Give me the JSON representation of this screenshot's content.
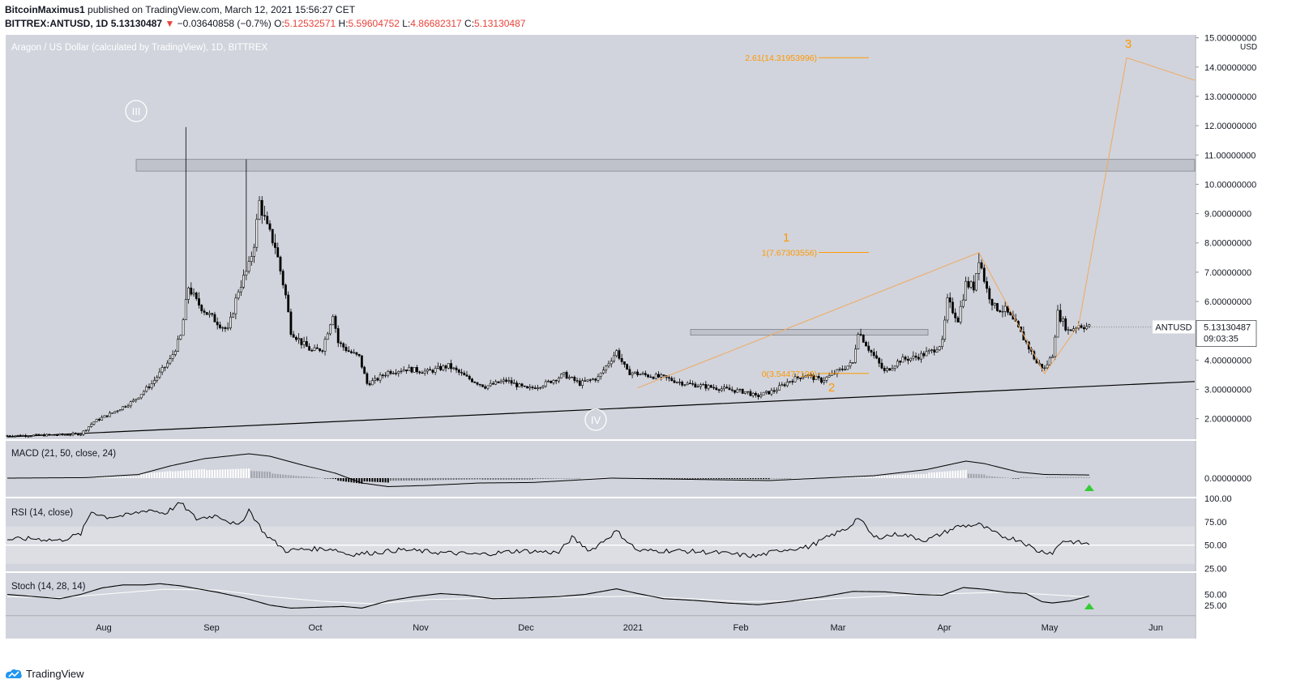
{
  "header": {
    "author": "BitcoinMaximus1",
    "published": "published on TradingView.com, March 12, 2021 15:56:27 CET",
    "symbol": "BITTREX:ANTUSD, 1D",
    "last": "5.13130487",
    "arrow": "▼",
    "change": "−0.03640858 (−0.7%)",
    "o_label": "O:",
    "o": "5.12532571",
    "h_label": "H:",
    "h": "5.59604752",
    "l_label": "L:",
    "l": "4.86682317",
    "c_label": "C:",
    "c": "5.13130487"
  },
  "branding": "TradingView",
  "colors": {
    "pane": "#d1d4dc",
    "band": "#dcdee4",
    "candle": "#000000",
    "orange": "#ff9800",
    "green": "#33cc33"
  },
  "chart_data": [
    {
      "type": "candlestick",
      "title": "Aragon / US Dollar (calculated by TradingView), 1D, BITTREX",
      "currency": "USD",
      "x_labels": [
        "Aug",
        "Sep",
        "Oct",
        "Nov",
        "Dec",
        "2021",
        "Feb",
        "Mar",
        "Apr",
        "May",
        "Jun"
      ],
      "y_ticks": [
        "2.00000000",
        "3.00000000",
        "4.00000000",
        "5.00000000",
        "6.00000000",
        "7.00000000",
        "8.00000000",
        "9.00000000",
        "10.00000000",
        "11.00000000",
        "12.00000000",
        "13.00000000",
        "14.00000000",
        "15.00000000"
      ],
      "ylim": [
        1.3,
        15.1
      ],
      "price_label": {
        "symbol": "ANTUSD",
        "value": "5.13130487",
        "countdown": "09:03:35"
      },
      "price_anchors_x_y": [
        [
          0,
          1.42
        ],
        [
          10,
          1.43
        ],
        [
          20,
          1.45
        ],
        [
          28,
          1.48
        ],
        [
          33,
          1.9
        ],
        [
          40,
          2.2
        ],
        [
          48,
          2.6
        ],
        [
          55,
          3.2
        ],
        [
          62,
          4.0
        ],
        [
          66,
          4.8
        ],
        [
          69,
          6.5
        ],
        [
          72,
          6.0
        ],
        [
          76,
          5.6
        ],
        [
          80,
          5.3
        ],
        [
          84,
          5.0
        ],
        [
          88,
          6.4
        ],
        [
          92,
          7.2
        ],
        [
          94,
          8.0
        ],
        [
          96,
          9.4
        ],
        [
          99,
          8.5
        ],
        [
          102,
          7.9
        ],
        [
          106,
          6.2
        ],
        [
          108,
          5.0
        ],
        [
          112,
          4.6
        ],
        [
          116,
          4.3
        ],
        [
          120,
          4.4
        ],
        [
          124,
          5.6
        ],
        [
          126,
          4.6
        ],
        [
          130,
          4.3
        ],
        [
          134,
          4.1
        ],
        [
          137,
          3.2
        ],
        [
          140,
          3.3
        ],
        [
          145,
          3.6
        ],
        [
          152,
          3.7
        ],
        [
          160,
          3.6
        ],
        [
          168,
          3.8
        ],
        [
          175,
          3.4
        ],
        [
          182,
          3.1
        ],
        [
          190,
          3.3
        ],
        [
          198,
          3.0
        ],
        [
          205,
          3.2
        ],
        [
          212,
          3.5
        ],
        [
          218,
          3.2
        ],
        [
          225,
          3.4
        ],
        [
          232,
          4.3
        ],
        [
          236,
          3.6
        ],
        [
          242,
          3.5
        ],
        [
          250,
          3.4
        ],
        [
          258,
          3.2
        ],
        [
          266,
          3.1
        ],
        [
          274,
          3.0
        ],
        [
          282,
          2.9
        ],
        [
          285,
          2.75
        ],
        [
          288,
          2.85
        ],
        [
          292,
          2.95
        ],
        [
          298,
          3.3
        ],
        [
          304,
          3.5
        ],
        [
          310,
          3.3
        ],
        [
          316,
          3.6
        ],
        [
          322,
          3.9
        ],
        [
          324,
          5.0
        ],
        [
          328,
          4.4
        ],
        [
          334,
          3.6
        ],
        [
          340,
          4.0
        ],
        [
          346,
          4.1
        ],
        [
          352,
          4.3
        ],
        [
          356,
          4.6
        ],
        [
          358,
          6.0
        ],
        [
          362,
          5.4
        ],
        [
          365,
          6.6
        ],
        [
          368,
          6.5
        ],
        [
          370,
          7.5
        ],
        [
          373,
          6.4
        ],
        [
          376,
          5.8
        ],
        [
          380,
          5.7
        ],
        [
          384,
          5.2
        ],
        [
          388,
          4.6
        ],
        [
          392,
          3.9
        ],
        [
          395,
          3.7
        ],
        [
          398,
          4.2
        ],
        [
          400,
          5.6
        ],
        [
          404,
          5.0
        ],
        [
          408,
          5.2
        ],
        [
          412,
          5.13
        ]
      ],
      "wicks": {
        "max_high": [
          68,
          11.95
        ],
        "sep_high": [
          91,
          10.85
        ],
        "feb_high": [
          370,
          7.67
        ]
      },
      "annotations": {
        "wave_labels": [
          "III",
          "IV",
          "1",
          "2",
          "3"
        ],
        "fib_levels": [
          {
            "label": "2.61(14.31953996)",
            "value": 14.31953996
          },
          {
            "label": "1(7.67303556)",
            "value": 7.67303556
          },
          {
            "label": "0(3.54477196)",
            "value": 3.54477196
          }
        ],
        "resistance_zone": [
          10.45,
          10.85
        ],
        "support_zone": [
          4.85,
          5.05
        ],
        "trendline": [
          [
            0,
            1.38
          ],
          [
            560,
            3.72
          ]
        ]
      }
    },
    {
      "type": "histogram+line",
      "title": "MACD (21, 50, close, 24)",
      "y_ticks": [
        "0.00000000"
      ],
      "line_anchors": [
        [
          0,
          0
        ],
        [
          30,
          0.02
        ],
        [
          50,
          0.15
        ],
        [
          62,
          0.5
        ],
        [
          75,
          0.8
        ],
        [
          92,
          1.0
        ],
        [
          100,
          0.9
        ],
        [
          112,
          0.55
        ],
        [
          125,
          0.2
        ],
        [
          135,
          -0.2
        ],
        [
          145,
          -0.35
        ],
        [
          160,
          -0.3
        ],
        [
          180,
          -0.2
        ],
        [
          200,
          -0.18
        ],
        [
          230,
          0.0
        ],
        [
          260,
          -0.05
        ],
        [
          290,
          -0.1
        ],
        [
          310,
          0.0
        ],
        [
          330,
          0.1
        ],
        [
          350,
          0.35
        ],
        [
          365,
          0.7
        ],
        [
          372,
          0.6
        ],
        [
          385,
          0.25
        ],
        [
          395,
          0.15
        ],
        [
          412,
          0.13
        ]
      ]
    },
    {
      "type": "line",
      "title": "RSI (14, close)",
      "y_ticks": [
        "100.00",
        "75.00",
        "50.00",
        "25.00"
      ],
      "ylim": [
        22,
        100
      ],
      "band": [
        30,
        70
      ],
      "midline": 50,
      "anchors": [
        [
          0,
          56
        ],
        [
          10,
          57
        ],
        [
          20,
          55
        ],
        [
          28,
          62
        ],
        [
          32,
          86
        ],
        [
          38,
          80
        ],
        [
          46,
          82
        ],
        [
          54,
          88
        ],
        [
          60,
          84
        ],
        [
          66,
          95
        ],
        [
          72,
          78
        ],
        [
          80,
          82
        ],
        [
          88,
          70
        ],
        [
          92,
          88
        ],
        [
          98,
          62
        ],
        [
          106,
          44
        ],
        [
          115,
          46
        ],
        [
          124,
          46
        ],
        [
          130,
          40
        ],
        [
          140,
          42
        ],
        [
          150,
          45
        ],
        [
          165,
          42
        ],
        [
          180,
          40
        ],
        [
          195,
          44
        ],
        [
          210,
          42
        ],
        [
          215,
          58
        ],
        [
          222,
          44
        ],
        [
          232,
          65
        ],
        [
          240,
          44
        ],
        [
          255,
          44
        ],
        [
          270,
          42
        ],
        [
          285,
          38
        ],
        [
          295,
          45
        ],
        [
          305,
          48
        ],
        [
          315,
          62
        ],
        [
          320,
          68
        ],
        [
          324,
          80
        ],
        [
          330,
          58
        ],
        [
          340,
          62
        ],
        [
          350,
          55
        ],
        [
          362,
          70
        ],
        [
          370,
          72
        ],
        [
          378,
          60
        ],
        [
          386,
          55
        ],
        [
          392,
          44
        ],
        [
          398,
          42
        ],
        [
          402,
          55
        ],
        [
          412,
          51
        ]
      ]
    },
    {
      "type": "line",
      "title": "Stoch (14, 28, 14)",
      "y_ticks": [
        "50.00",
        "25.00"
      ],
      "ylim": [
        0,
        100
      ],
      "k_anchors": [
        [
          0,
          50
        ],
        [
          10,
          45
        ],
        [
          20,
          40
        ],
        [
          28,
          50
        ],
        [
          36,
          65
        ],
        [
          44,
          72
        ],
        [
          52,
          72
        ],
        [
          58,
          75
        ],
        [
          66,
          70
        ],
        [
          80,
          55
        ],
        [
          90,
          42
        ],
        [
          100,
          25
        ],
        [
          108,
          18
        ],
        [
          118,
          20
        ],
        [
          128,
          22
        ],
        [
          135,
          18
        ],
        [
          145,
          35
        ],
        [
          155,
          45
        ],
        [
          165,
          52
        ],
        [
          175,
          48
        ],
        [
          185,
          40
        ],
        [
          198,
          42
        ],
        [
          210,
          45
        ],
        [
          220,
          50
        ],
        [
          232,
          63
        ],
        [
          240,
          52
        ],
        [
          250,
          40
        ],
        [
          262,
          36
        ],
        [
          274,
          30
        ],
        [
          286,
          26
        ],
        [
          298,
          34
        ],
        [
          310,
          44
        ],
        [
          322,
          57
        ],
        [
          334,
          56
        ],
        [
          346,
          50
        ],
        [
          356,
          48
        ],
        [
          364,
          66
        ],
        [
          372,
          62
        ],
        [
          380,
          55
        ],
        [
          388,
          52
        ],
        [
          394,
          33
        ],
        [
          398,
          30
        ],
        [
          405,
          35
        ],
        [
          412,
          46
        ]
      ],
      "d_anchors": [
        [
          0,
          45
        ],
        [
          20,
          42
        ],
        [
          40,
          52
        ],
        [
          60,
          62
        ],
        [
          80,
          60
        ],
        [
          100,
          45
        ],
        [
          120,
          34
        ],
        [
          140,
          28
        ],
        [
          160,
          38
        ],
        [
          190,
          42
        ],
        [
          220,
          44
        ],
        [
          240,
          46
        ],
        [
          260,
          40
        ],
        [
          280,
          33
        ],
        [
          300,
          35
        ],
        [
          320,
          42
        ],
        [
          340,
          48
        ],
        [
          360,
          52
        ],
        [
          380,
          55
        ],
        [
          395,
          50
        ],
        [
          412,
          44
        ]
      ]
    }
  ]
}
